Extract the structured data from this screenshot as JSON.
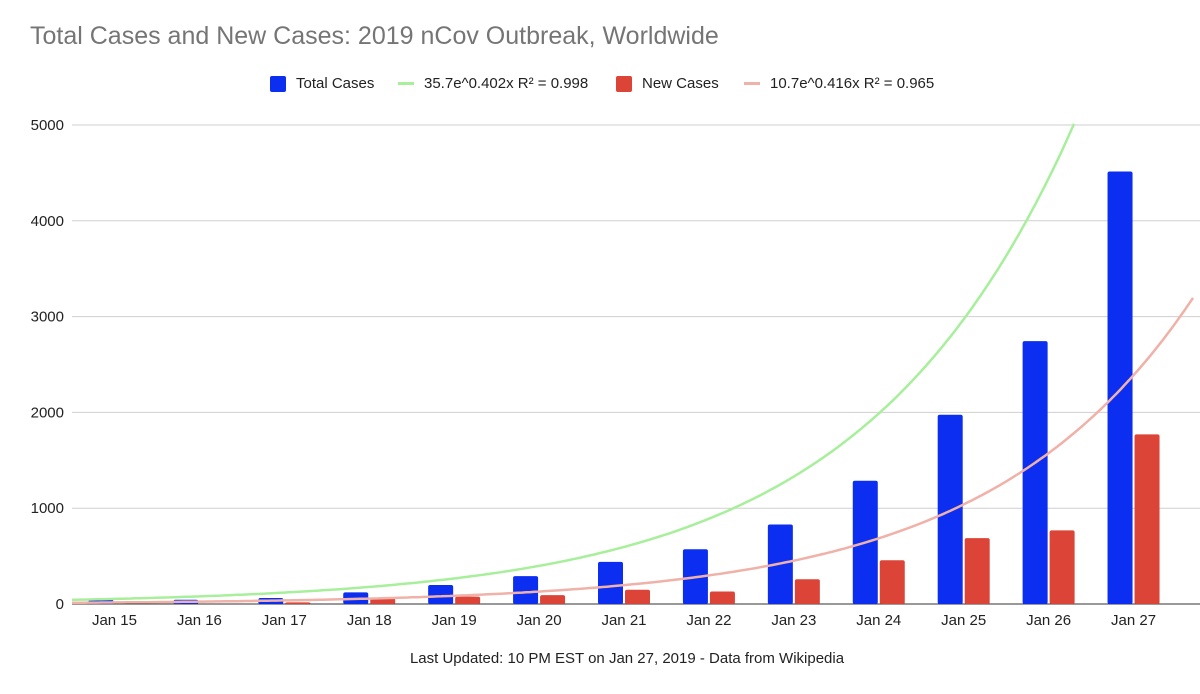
{
  "chart_data": {
    "type": "bar",
    "title": "Total Cases and New Cases: 2019 nCov Outbreak, Worldwide",
    "footer": "Last Updated: 10 PM EST on Jan 27, 2019 - Data from Wikipedia",
    "categories": [
      "Jan 15",
      "Jan 16",
      "Jan 17",
      "Jan 18",
      "Jan 19",
      "Jan 20",
      "Jan 21",
      "Jan 22",
      "Jan 23",
      "Jan 24",
      "Jan 25",
      "Jan 26",
      "Jan 27"
    ],
    "series": [
      {
        "name": "Total Cases",
        "color": "#0b2ef0",
        "values": [
          45,
          45,
          62,
          121,
          198,
          291,
          440,
          571,
          830,
          1287,
          1975,
          2744,
          4515
        ]
      },
      {
        "name": "New Cases",
        "color": "#db4437",
        "values": [
          0,
          0,
          17,
          59,
          77,
          93,
          149,
          131,
          259,
          457,
          688,
          769,
          1771
        ]
      }
    ],
    "trendlines": [
      {
        "label": "35.7e^0.402x R² = 0.998",
        "color": "#a8ef9c",
        "a": 35.7,
        "b": 0.402,
        "series": "Total Cases"
      },
      {
        "label": "10.7e^0.416x R² = 0.965",
        "color": "#f0b1a8",
        "a": 10.7,
        "b": 0.416,
        "series": "New Cases"
      }
    ],
    "yticks": [
      0,
      1000,
      2000,
      3000,
      4000,
      5000
    ],
    "ylim": [
      0,
      5000
    ],
    "xlabel": "",
    "ylabel": "",
    "grid": true,
    "legend_position": "top"
  }
}
